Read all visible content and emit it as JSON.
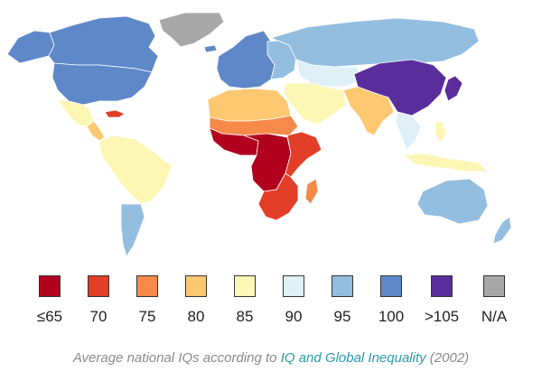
{
  "colors": {
    "ocean": "#ffffff",
    "border": "#ffffff"
  },
  "legend": [
    {
      "label": "≤65",
      "color": "#b2001f",
      "band": "le65"
    },
    {
      "label": "70",
      "color": "#e23e28",
      "band": "70"
    },
    {
      "label": "75",
      "color": "#f7894a",
      "band": "75"
    },
    {
      "label": "80",
      "color": "#fdc870",
      "band": "80"
    },
    {
      "label": "85",
      "color": "#fdf7b6",
      "band": "85"
    },
    {
      "label": "90",
      "color": "#dff1f6",
      "band": "90"
    },
    {
      "label": "95",
      "color": "#93bee0",
      "band": "95"
    },
    {
      "label": "100",
      "color": "#5f88c8",
      "band": "100"
    },
    {
      "label": ">105",
      "color": "#5a2d9c",
      "band": "gt105"
    },
    {
      "label": "N/A",
      "color": "#a8a8a8",
      "band": "na"
    }
  ],
  "caption": {
    "prefix": "Average national IQs according to ",
    "link": "IQ and Global Inequality",
    "suffix": " (2002)"
  },
  "regions": [
    {
      "name": "greenland",
      "band": "na"
    },
    {
      "name": "canada",
      "band": "100"
    },
    {
      "name": "alaska",
      "band": "100"
    },
    {
      "name": "usa",
      "band": "100"
    },
    {
      "name": "mexico",
      "band": "85"
    },
    {
      "name": "central-america",
      "band": "80"
    },
    {
      "name": "caribbean",
      "band": "70"
    },
    {
      "name": "south-america",
      "band": "85"
    },
    {
      "name": "southern-cone",
      "band": "95"
    },
    {
      "name": "iceland",
      "band": "100"
    },
    {
      "name": "europe",
      "band": "100"
    },
    {
      "name": "eastern-europe",
      "band": "95"
    },
    {
      "name": "russia",
      "band": "95"
    },
    {
      "name": "central-asia",
      "band": "90"
    },
    {
      "name": "middle-east",
      "band": "85"
    },
    {
      "name": "south-asia",
      "band": "80"
    },
    {
      "name": "north-africa",
      "band": "80"
    },
    {
      "name": "sahel",
      "band": "75"
    },
    {
      "name": "west-africa",
      "band": "le65"
    },
    {
      "name": "central-africa",
      "band": "le65"
    },
    {
      "name": "east-africa",
      "band": "70"
    },
    {
      "name": "southern-africa",
      "band": "70"
    },
    {
      "name": "madagascar",
      "band": "75"
    },
    {
      "name": "china",
      "band": "gt105"
    },
    {
      "name": "japan-korea",
      "band": "gt105"
    },
    {
      "name": "southeast-asia",
      "band": "90"
    },
    {
      "name": "indonesia",
      "band": "85"
    },
    {
      "name": "philippines",
      "band": "85"
    },
    {
      "name": "australia",
      "band": "95"
    },
    {
      "name": "new-zealand",
      "band": "95"
    }
  ]
}
